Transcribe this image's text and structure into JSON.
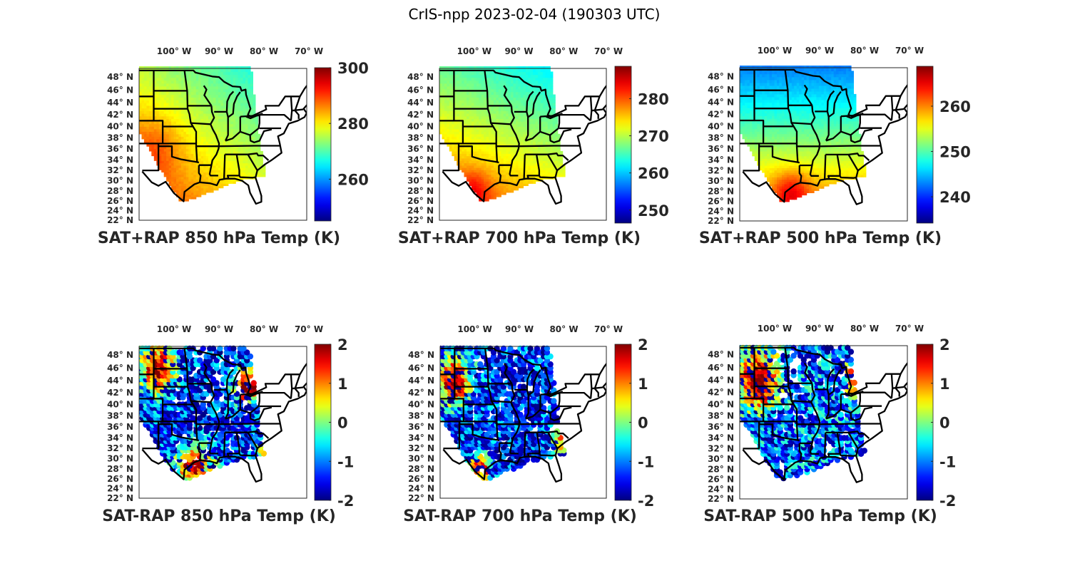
{
  "figure": {
    "title": "CrIS-npp 2023-02-04 (190303 UTC)"
  },
  "chart_data": [
    {
      "type": "heatmap",
      "title": "SAT+RAP 850 hPa Temp (K)",
      "xlabel": "",
      "ylabel": "",
      "x_tick_labels": [
        "100° W",
        "90° W",
        "80° W",
        "70° W"
      ],
      "x_ticks_deg": [
        -100,
        -90,
        -80,
        -70
      ],
      "y_tick_labels": [
        "48° N",
        "46° N",
        "44° N",
        "42° N",
        "40° N",
        "38° N",
        "36° N",
        "34° N",
        "32° N",
        "30° N",
        "28° N",
        "26° N",
        "24° N",
        "22° N"
      ],
      "y_ticks_deg": [
        48,
        46,
        44,
        42,
        40,
        38,
        36,
        34,
        32,
        30,
        28,
        26,
        24,
        22
      ],
      "xlim": [
        -107.3,
        -70.0
      ],
      "ylim": [
        22.0,
        49.3
      ],
      "colorbar": {
        "ticks": [
          300,
          280,
          260
        ],
        "range": [
          245,
          300
        ],
        "colormap": "jet"
      },
      "field": {
        "kind": "absolute",
        "base": 278,
        "north_gradient": -0.6,
        "east_gradient": -0.35,
        "hot_spot": [
          -104,
          36,
          12
        ],
        "noise": 1.5
      }
    },
    {
      "type": "heatmap",
      "title": "SAT+RAP 700 hPa Temp (K)",
      "x_tick_labels": [
        "100° W",
        "90° W",
        "80° W",
        "70° W"
      ],
      "x_ticks_deg": [
        -100,
        -90,
        -80,
        -70
      ],
      "y_tick_labels": [
        "48° N",
        "46° N",
        "44° N",
        "42° N",
        "40° N",
        "38° N",
        "36° N",
        "34° N",
        "32° N",
        "30° N",
        "28° N",
        "26° N",
        "24° N",
        "22° N"
      ],
      "y_ticks_deg": [
        48,
        46,
        44,
        42,
        40,
        38,
        36,
        34,
        32,
        30,
        28,
        26,
        24,
        22
      ],
      "xlim": [
        -107.3,
        -70.0
      ],
      "ylim": [
        22.0,
        49.3
      ],
      "colorbar": {
        "ticks": [
          280,
          270,
          260,
          250
        ],
        "range": [
          246.5,
          288.7
        ],
        "colormap": "jet"
      },
      "field": {
        "kind": "absolute",
        "base": 271,
        "north_gradient": -0.6,
        "east_gradient": -0.2,
        "hot_spot": [
          -100,
          28,
          8
        ],
        "noise": 1.0
      }
    },
    {
      "type": "heatmap",
      "title": "SAT+RAP 500 hPa Temp (K)",
      "x_tick_labels": [
        "100° W",
        "90° W",
        "80° W",
        "70° W"
      ],
      "x_ticks_deg": [
        -100,
        -90,
        -80,
        -70
      ],
      "y_tick_labels": [
        "48° N",
        "46° N",
        "44° N",
        "42° N",
        "40° N",
        "38° N",
        "36° N",
        "34° N",
        "32° N",
        "30° N",
        "28° N",
        "26° N",
        "24° N",
        "22° N"
      ],
      "y_ticks_deg": [
        48,
        46,
        44,
        42,
        40,
        38,
        36,
        34,
        32,
        30,
        28,
        26,
        24,
        22
      ],
      "xlim": [
        -107.3,
        -70.0
      ],
      "ylim": [
        22.0,
        49.3
      ],
      "colorbar": {
        "ticks": [
          260,
          250,
          240
        ],
        "range": [
          234.2,
          268.8
        ],
        "colormap": "jet"
      },
      "field": {
        "kind": "absolute",
        "base": 252,
        "north_gradient": -0.75,
        "east_gradient": 0.0,
        "hot_spot": [
          -96,
          28,
          8
        ],
        "noise": 0.8
      }
    },
    {
      "type": "heatmap",
      "title": "SAT-RAP 850 hPa Temp (K)",
      "x_tick_labels": [
        "100° W",
        "90° W",
        "80° W",
        "70° W"
      ],
      "x_ticks_deg": [
        -100,
        -90,
        -80,
        -70
      ],
      "y_tick_labels": [
        "48° N",
        "46° N",
        "44° N",
        "42° N",
        "40° N",
        "38° N",
        "36° N",
        "34° N",
        "32° N",
        "30° N",
        "28° N",
        "26° N",
        "24° N",
        "22° N"
      ],
      "y_ticks_deg": [
        48,
        46,
        44,
        42,
        40,
        38,
        36,
        34,
        32,
        30,
        28,
        26,
        24,
        22
      ],
      "xlim": [
        -107.3,
        -70.0
      ],
      "ylim": [
        22.0,
        49.3
      ],
      "colorbar": {
        "ticks": [
          2,
          1,
          0,
          -1,
          -2
        ],
        "range": [
          -2,
          2
        ],
        "colormap": "jet"
      },
      "field": {
        "kind": "difference",
        "seed": 11,
        "warm_regions": [
          [
            -103,
            46,
            4
          ],
          [
            -95,
            28.5,
            4
          ],
          [
            -83,
            43,
            3
          ],
          [
            -78.5,
            32,
            2
          ]
        ],
        "gaps": 0.35
      }
    },
    {
      "type": "heatmap",
      "title": "SAT-RAP 700 hPa Temp (K)",
      "x_tick_labels": [
        "100° W",
        "90° W",
        "80° W",
        "70° W"
      ],
      "x_ticks_deg": [
        -100,
        -90,
        -80,
        -70
      ],
      "y_tick_labels": [
        "48° N",
        "46° N",
        "44° N",
        "42° N",
        "40° N",
        "38° N",
        "36° N",
        "34° N",
        "32° N",
        "30° N",
        "28° N",
        "26° N",
        "24° N",
        "22° N"
      ],
      "y_ticks_deg": [
        48,
        46,
        44,
        42,
        40,
        38,
        36,
        34,
        32,
        30,
        28,
        26,
        24,
        22
      ],
      "xlim": [
        -107.3,
        -70.0
      ],
      "ylim": [
        22.0,
        49.3
      ],
      "colorbar": {
        "ticks": [
          2,
          1,
          0,
          -1,
          -2
        ],
        "range": [
          -2,
          2
        ],
        "colormap": "jet"
      },
      "field": {
        "kind": "difference",
        "seed": 23,
        "warm_regions": [
          [
            -104,
            44,
            4
          ],
          [
            -98,
            28,
            2.5
          ],
          [
            -79,
            33,
            2.5
          ]
        ],
        "gaps": 0.3
      }
    },
    {
      "type": "heatmap",
      "title": "SAT-RAP 500 hPa Temp (K)",
      "x_tick_labels": [
        "100° W",
        "90° W",
        "80° W",
        "70° W"
      ],
      "x_ticks_deg": [
        -100,
        -90,
        -80,
        -70
      ],
      "y_tick_labels": [
        "48° N",
        "46° N",
        "44° N",
        "42° N",
        "40° N",
        "38° N",
        "36° N",
        "34° N",
        "32° N",
        "30° N",
        "28° N",
        "26° N",
        "24° N",
        "22° N"
      ],
      "y_ticks_deg": [
        48,
        46,
        44,
        42,
        40,
        38,
        36,
        34,
        32,
        30,
        28,
        26,
        24,
        22
      ],
      "xlim": [
        -107.3,
        -70.0
      ],
      "ylim": [
        22.0,
        49.3
      ],
      "colorbar": {
        "ticks": [
          2,
          1,
          0,
          -1,
          -2
        ],
        "range": [
          -2,
          2
        ],
        "colormap": "jet"
      },
      "field": {
        "kind": "difference",
        "seed": 37,
        "warm_regions": [
          [
            -103,
            44,
            4.5
          ],
          [
            -81,
            44,
            2.5
          ]
        ],
        "gaps": 0.3,
        "bias": 0.4
      }
    }
  ]
}
